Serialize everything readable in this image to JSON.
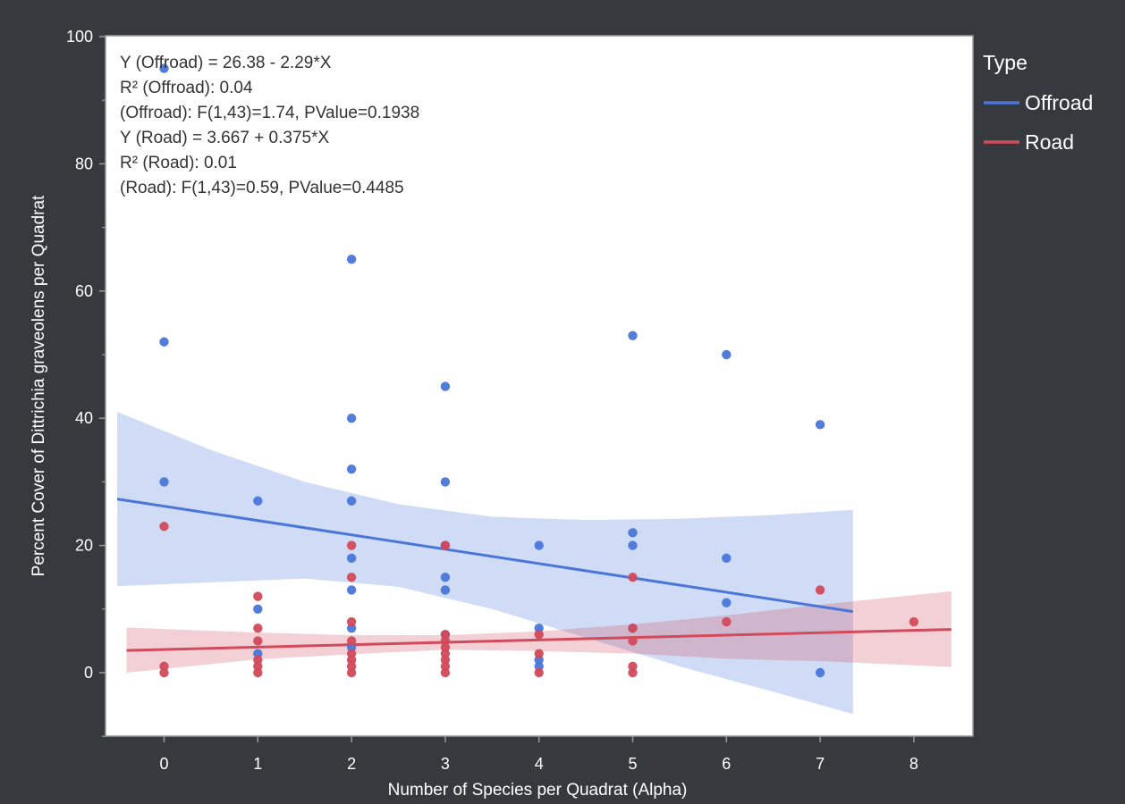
{
  "chart_data": {
    "type": "scatter",
    "xlabel": "Number of Species per Quadrat (Alpha)",
    "ylabel": "Percent Cover of Dittrichia graveolens per Quadrat",
    "xlim": [
      -0.6,
      8.6
    ],
    "ylim": [
      -10,
      100
    ],
    "x_ticks": [
      0,
      1,
      2,
      3,
      4,
      5,
      6,
      7,
      8
    ],
    "y_ticks": [
      0,
      20,
      40,
      60,
      80,
      100
    ],
    "y_minor_ticks": [
      -10,
      10,
      30,
      50,
      70,
      90
    ],
    "x_tick_labels": [
      "0",
      "1",
      "2",
      "3",
      "4",
      "5",
      "6",
      "7",
      "8"
    ],
    "y_tick_labels": [
      "0",
      "20",
      "40",
      "60",
      "80",
      "100"
    ],
    "grid": false,
    "legend": {
      "title": "Type",
      "placement": "right",
      "entries": [
        {
          "name": "Offroad",
          "color": "#4a76d9"
        },
        {
          "name": "Road",
          "color": "#d24a5b"
        }
      ]
    },
    "annotations": [
      "Y (Offroad) = 26.38 - 2.29*X",
      "R² (Offroad): 0.04",
      "(Offroad): F(1,43)=1.74, PValue=0.1938",
      "Y (Road) = 3.667 + 0.375*X",
      "R² (Road): 0.01",
      "(Road): F(1,43)=0.59, PValue=0.4485"
    ],
    "series": [
      {
        "name": "Offroad",
        "color": "#4a76d9",
        "band_color": "#4a76d9",
        "points": [
          [
            0,
            95
          ],
          [
            0,
            52
          ],
          [
            0,
            30
          ],
          [
            1,
            27
          ],
          [
            1,
            10
          ],
          [
            1,
            3
          ],
          [
            2,
            65
          ],
          [
            2,
            40
          ],
          [
            2,
            32
          ],
          [
            2,
            27
          ],
          [
            2,
            18
          ],
          [
            2,
            13
          ],
          [
            2,
            7
          ],
          [
            2,
            4
          ],
          [
            3,
            45
          ],
          [
            3,
            30
          ],
          [
            3,
            20
          ],
          [
            3,
            15
          ],
          [
            3,
            13
          ],
          [
            3,
            6
          ],
          [
            4,
            20
          ],
          [
            4,
            7
          ],
          [
            4,
            2
          ],
          [
            4,
            1
          ],
          [
            5,
            53
          ],
          [
            5,
            22
          ],
          [
            5,
            20
          ],
          [
            5,
            7
          ],
          [
            6,
            50
          ],
          [
            6,
            18
          ],
          [
            6,
            11
          ],
          [
            7,
            39
          ],
          [
            7,
            0
          ]
        ],
        "fit": {
          "x": [
            -0.5,
            7.35
          ],
          "y": [
            27.3,
            9.6
          ]
        },
        "band_upper": [
          [
            -0.5,
            41
          ],
          [
            0.5,
            35
          ],
          [
            1.5,
            30
          ],
          [
            2.5,
            26.5
          ],
          [
            3.5,
            24.5
          ],
          [
            4.5,
            24
          ],
          [
            5.5,
            24.2
          ],
          [
            6.5,
            24.8
          ],
          [
            7.35,
            25.6
          ]
        ],
        "band_lower": [
          [
            -0.5,
            13.6
          ],
          [
            0.5,
            14.2
          ],
          [
            1.5,
            14.8
          ],
          [
            2.5,
            13.5
          ],
          [
            3.5,
            10
          ],
          [
            4.5,
            5.5
          ],
          [
            5.5,
            1
          ],
          [
            6.5,
            -3
          ],
          [
            7.35,
            -6.5
          ]
        ]
      },
      {
        "name": "Road",
        "color": "#d24a5b",
        "band_color": "#d24a5b",
        "points": [
          [
            0,
            23
          ],
          [
            0,
            1
          ],
          [
            0,
            0
          ],
          [
            1,
            12
          ],
          [
            1,
            7
          ],
          [
            1,
            5
          ],
          [
            1,
            2
          ],
          [
            1,
            1
          ],
          [
            1,
            0
          ],
          [
            2,
            20
          ],
          [
            2,
            15
          ],
          [
            2,
            8
          ],
          [
            2,
            5
          ],
          [
            2,
            3
          ],
          [
            2,
            2
          ],
          [
            2,
            1
          ],
          [
            2,
            0
          ],
          [
            3,
            20
          ],
          [
            3,
            6
          ],
          [
            3,
            5
          ],
          [
            3,
            4
          ],
          [
            3,
            3
          ],
          [
            3,
            2
          ],
          [
            3,
            1
          ],
          [
            3,
            0
          ],
          [
            4,
            6
          ],
          [
            4,
            3
          ],
          [
            4,
            0
          ],
          [
            5,
            15
          ],
          [
            5,
            7
          ],
          [
            5,
            5
          ],
          [
            5,
            1
          ],
          [
            5,
            0
          ],
          [
            6,
            8
          ],
          [
            7,
            13
          ],
          [
            8,
            8
          ]
        ],
        "fit": {
          "x": [
            -0.4,
            8.4
          ],
          "y": [
            3.5,
            6.8
          ]
        },
        "band_upper": [
          [
            -0.4,
            7.1
          ],
          [
            1,
            6.3
          ],
          [
            2,
            5.9
          ],
          [
            3,
            5.9
          ],
          [
            4,
            6.5
          ],
          [
            5,
            7.6
          ],
          [
            6,
            9
          ],
          [
            7,
            10.7
          ],
          [
            8.4,
            12.8
          ]
        ],
        "band_lower": [
          [
            -0.4,
            0
          ],
          [
            1,
            2.1
          ],
          [
            2,
            2.9
          ],
          [
            3,
            3.6
          ],
          [
            4,
            3.4
          ],
          [
            5,
            3
          ],
          [
            6,
            2.2
          ],
          [
            7,
            1.8
          ],
          [
            8.4,
            0.9
          ]
        ]
      }
    ]
  }
}
